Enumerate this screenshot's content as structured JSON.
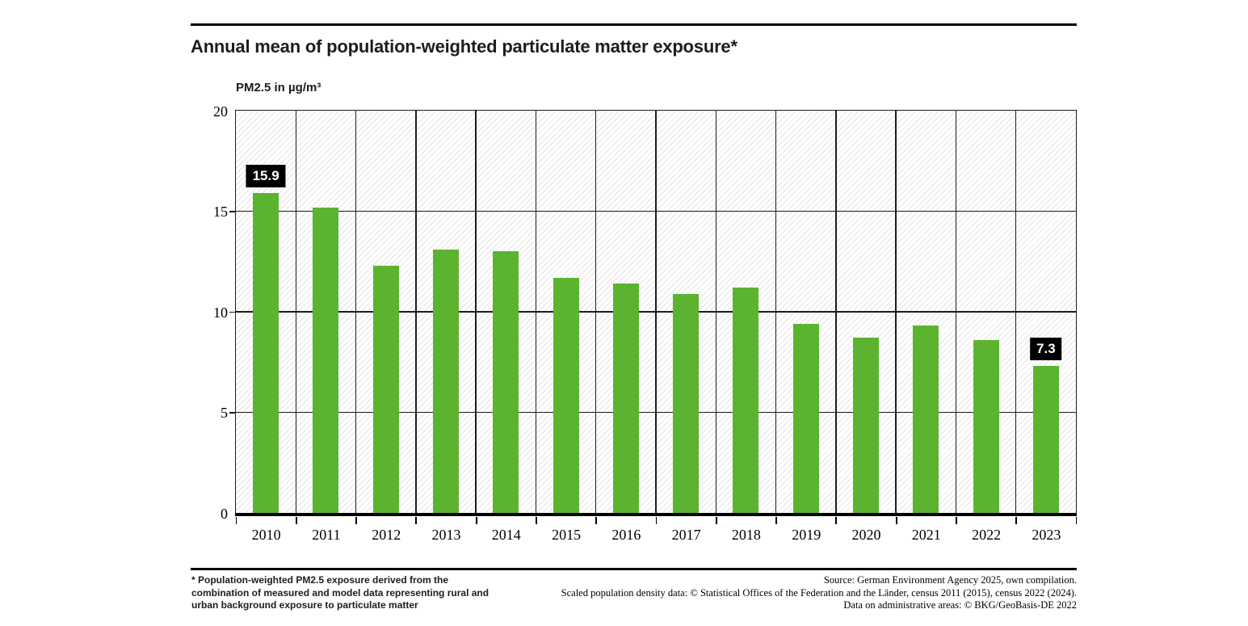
{
  "header": {
    "title": "Annual mean of population-weighted particulate matter exposure*"
  },
  "chart_data": {
    "type": "bar",
    "title": "Annual mean of population-weighted particulate matter exposure*",
    "ylabel": "PM2.5 in µg/m³",
    "xlabel": "",
    "categories": [
      "2010",
      "2011",
      "2012",
      "2013",
      "2014",
      "2015",
      "2016",
      "2017",
      "2018",
      "2019",
      "2020",
      "2021",
      "2022",
      "2023"
    ],
    "values": [
      15.9,
      15.2,
      12.3,
      13.1,
      13.0,
      11.7,
      11.4,
      10.9,
      11.2,
      9.4,
      8.7,
      9.3,
      8.6,
      7.3
    ],
    "ylim": [
      0,
      20
    ],
    "yticks": [
      0,
      5,
      10,
      15,
      20
    ],
    "grid": "on",
    "legend": "none",
    "bar_color": "#5cb32f",
    "hatch_background": "diagonal-light-gray",
    "data_labels": [
      {
        "index": 0,
        "text": "15.9"
      },
      {
        "index": 13,
        "text": "7.3"
      }
    ],
    "data_label_style": {
      "background": "#000000",
      "color": "#ffffff"
    }
  },
  "footnote": {
    "lines": [
      "* Population-weighted PM2.5 exposure derived from the",
      "combination of measured and model data representing rural and",
      "urban background exposure to particulate matter"
    ]
  },
  "source": {
    "lines": [
      "Source: German Environment Agency 2025, own compilation.",
      "Scaled population density data: © Statistical Offices of the Federation and the Länder, census 2011 (2015), census 2022 (2024).",
      "Data on administrative areas: © BKG/GeoBasis-DE 2022"
    ]
  }
}
